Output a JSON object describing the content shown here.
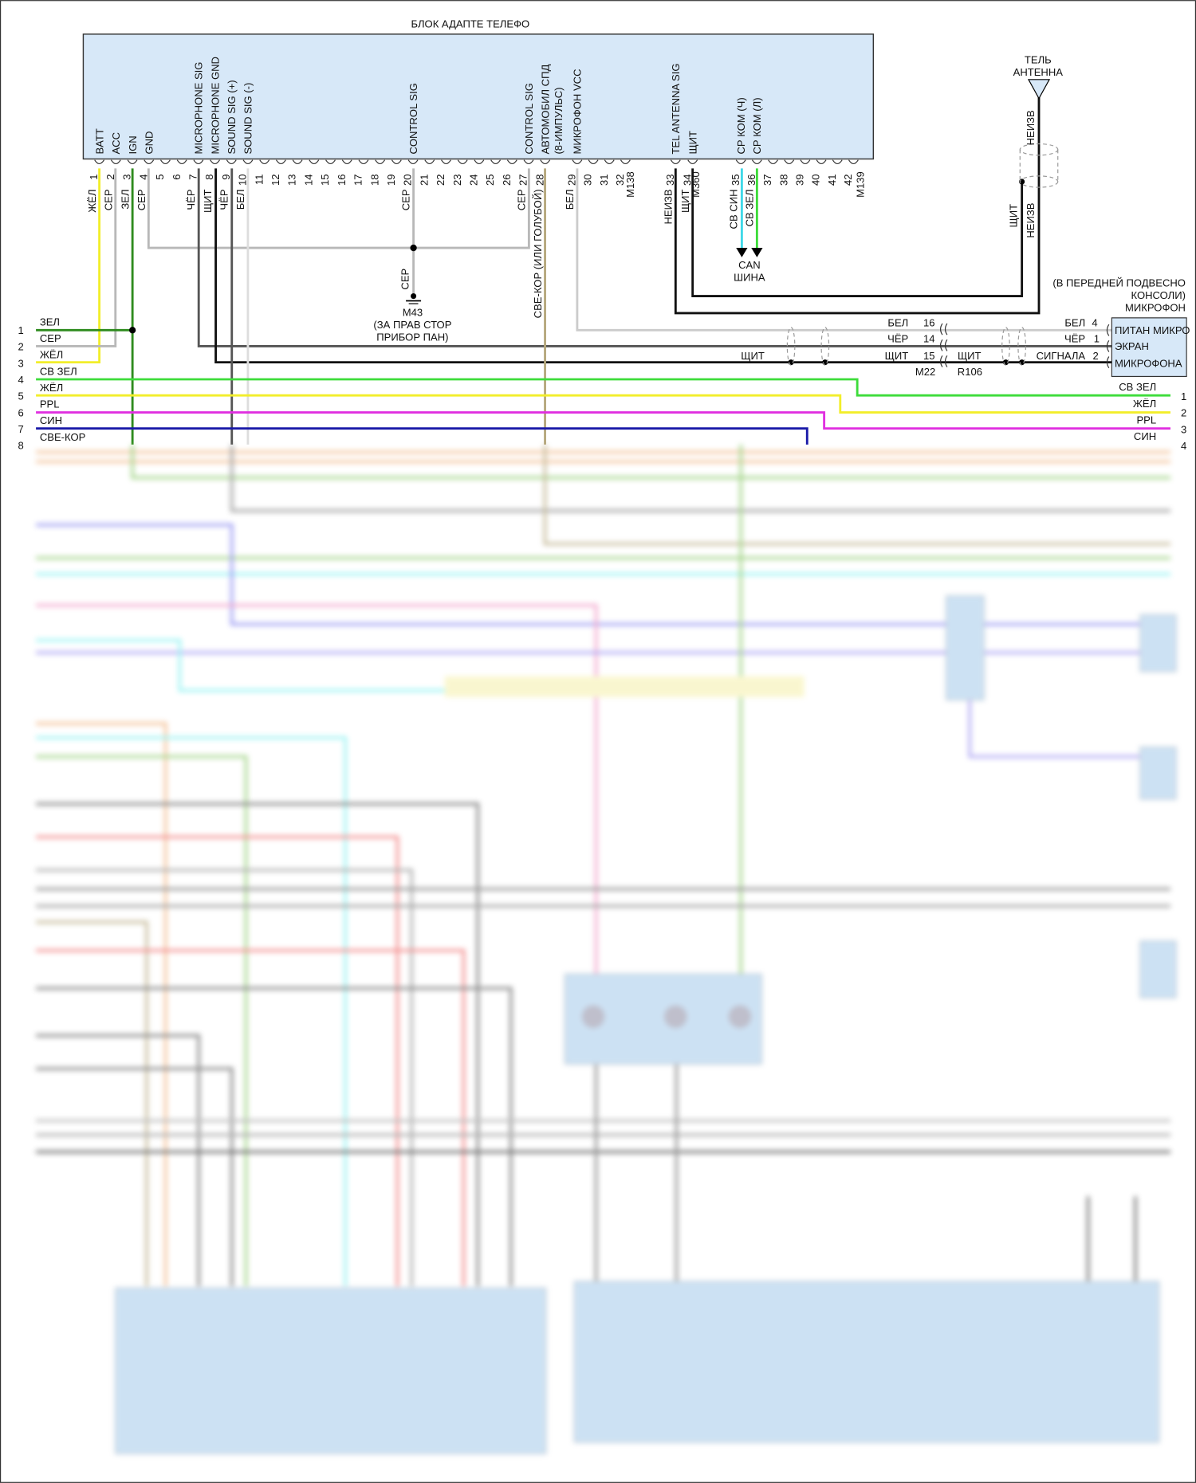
{
  "module": {
    "title": "БЛОК АДАПТЕ ТЕЛЕФО",
    "pins": [
      {
        "num": "1",
        "signal": "BATT",
        "wire": "ЖЁЛ"
      },
      {
        "num": "2",
        "signal": "ACC",
        "wire": "СЕР"
      },
      {
        "num": "3",
        "signal": "IGN",
        "wire": "ЗЕЛ"
      },
      {
        "num": "4",
        "signal": "GND",
        "wire": "СЕР"
      },
      {
        "num": "5",
        "signal": "",
        "wire": ""
      },
      {
        "num": "6",
        "signal": "",
        "wire": ""
      },
      {
        "num": "7",
        "signal": "MICROPHONE SIG",
        "wire": "ЧЁР"
      },
      {
        "num": "8",
        "signal": "MICROPHONE GND",
        "wire": "ЩИТ"
      },
      {
        "num": "9",
        "signal": "SOUND SIG (+)",
        "wire": "ЧЁР"
      },
      {
        "num": "10",
        "signal": "SOUND SIG (-)",
        "wire": "БЕЛ"
      },
      {
        "num": "11",
        "signal": "",
        "wire": ""
      },
      {
        "num": "12",
        "signal": "",
        "wire": ""
      },
      {
        "num": "13",
        "signal": "",
        "wire": ""
      },
      {
        "num": "14",
        "signal": "",
        "wire": ""
      },
      {
        "num": "15",
        "signal": "",
        "wire": ""
      },
      {
        "num": "16",
        "signal": "",
        "wire": ""
      },
      {
        "num": "17",
        "signal": "",
        "wire": ""
      },
      {
        "num": "18",
        "signal": "",
        "wire": ""
      },
      {
        "num": "19",
        "signal": "",
        "wire": ""
      },
      {
        "num": "20",
        "signal": "CONTROL SIG",
        "wire": "СЕР"
      },
      {
        "num": "21",
        "signal": "",
        "wire": ""
      },
      {
        "num": "22",
        "signal": "",
        "wire": ""
      },
      {
        "num": "23",
        "signal": "",
        "wire": ""
      },
      {
        "num": "24",
        "signal": "",
        "wire": ""
      },
      {
        "num": "25",
        "signal": "",
        "wire": ""
      },
      {
        "num": "26",
        "signal": "",
        "wire": ""
      },
      {
        "num": "27",
        "signal": "CONTROL SIG",
        "wire": "СЕР"
      },
      {
        "num": "28",
        "signal": "АВТОМОБИЛ СПД",
        "wire": "СВЕ-КОР  (ИЛИ ГОЛУБОЙ)"
      },
      {
        "num": "29",
        "signal": "МИКРОФОН VCC",
        "wire": "БЕЛ"
      },
      {
        "num": "30",
        "signal": "",
        "wire": ""
      },
      {
        "num": "31",
        "signal": "",
        "wire": ""
      },
      {
        "num": "32",
        "signal": "",
        "wire": ""
      },
      {
        "num": "M138",
        "signal": "",
        "wire": ""
      },
      {
        "num": "33",
        "signal": "TEL ANTENNA SIG",
        "wire": "НЕИЗВ"
      },
      {
        "num": "34",
        "signal": "ЩИТ",
        "wire": "ЩИТ"
      },
      {
        "num": "M360",
        "signal": "",
        "wire": ""
      },
      {
        "num": "35",
        "signal": "СР КОМ (Ч)",
        "wire": "СВ СИН"
      },
      {
        "num": "36",
        "signal": "СР КОМ (Л)",
        "wire": "СВ ЗЕЛ"
      },
      {
        "num": "37",
        "signal": "",
        "wire": ""
      },
      {
        "num": "38",
        "signal": "",
        "wire": ""
      },
      {
        "num": "39",
        "signal": "",
        "wire": ""
      },
      {
        "num": "40",
        "signal": "",
        "wire": ""
      },
      {
        "num": "41",
        "signal": "",
        "wire": ""
      },
      {
        "num": "42",
        "signal": "",
        "wire": ""
      },
      {
        "num": "M139",
        "signal": "",
        "wire": ""
      }
    ],
    "pin28_note": "(8-ИМПУЛЬС)"
  },
  "ground": {
    "wire": "СЕР",
    "id": "M43",
    "line1": "(ЗА ПРАВ СТОР",
    "line2": "ПРИБОР ПАН)"
  },
  "can_bus": {
    "line1": "CAN",
    "line2": "ШИНА"
  },
  "antenna": {
    "line1": "ТЕЛЬ",
    "line2": "АНТЕННА",
    "wire_top": "НЕИЗВ",
    "wire_shield": "ЩИТ",
    "wire_bottom": "НЕИЗВ"
  },
  "microphone": {
    "loc1": "(В ПЕРЕДНЕЙ ПОДВЕСНО",
    "loc2": "КОНСОЛИ)",
    "loc3": "МИКРОФОН",
    "pins": [
      {
        "label": "ПИТАН МИКРО",
        "num": "4",
        "wire": "БЕЛ",
        "conn_num": "16",
        "conn_wire": "БЕЛ"
      },
      {
        "label": "ЭКРАН",
        "num": "1",
        "wire": "ЧЁР",
        "conn_num": "14",
        "conn_wire": "ЧЁР"
      },
      {
        "label": "МИКРОФОНА",
        "num": "2",
        "wire": "СИГНАЛА",
        "conn_num": "15",
        "conn_wire": "ЩИТ"
      }
    ],
    "shield_left": "ЩИТ",
    "shield_right": "ЩИТ",
    "conn_left": "M22",
    "conn_right": "R106"
  },
  "left_connector": [
    {
      "num": "1",
      "wire": "ЗЕЛ",
      "color": "#2e8b1e"
    },
    {
      "num": "2",
      "wire": "СЕР",
      "color": "#b0b0b0"
    },
    {
      "num": "3",
      "wire": "ЖЁЛ",
      "color": "#f2ee2a"
    },
    {
      "num": "4",
      "wire": "СВ ЗЕЛ",
      "color": "#3ddc3a"
    },
    {
      "num": "5",
      "wire": "ЖЁЛ",
      "color": "#f2ee2a"
    },
    {
      "num": "6",
      "wire": "PPL",
      "color": "#e030e0"
    },
    {
      "num": "7",
      "wire": "СИН",
      "color": "#1a1aa8"
    },
    {
      "num": "8",
      "wire": "СВЕ-КОР",
      "color": "#b5a77c"
    }
  ],
  "right_connector": [
    {
      "num": "1",
      "wire": "СВ ЗЕЛ"
    },
    {
      "num": "2",
      "wire": "ЖЁЛ"
    },
    {
      "num": "3",
      "wire": "PPL"
    },
    {
      "num": "4",
      "wire": "СИН"
    }
  ]
}
